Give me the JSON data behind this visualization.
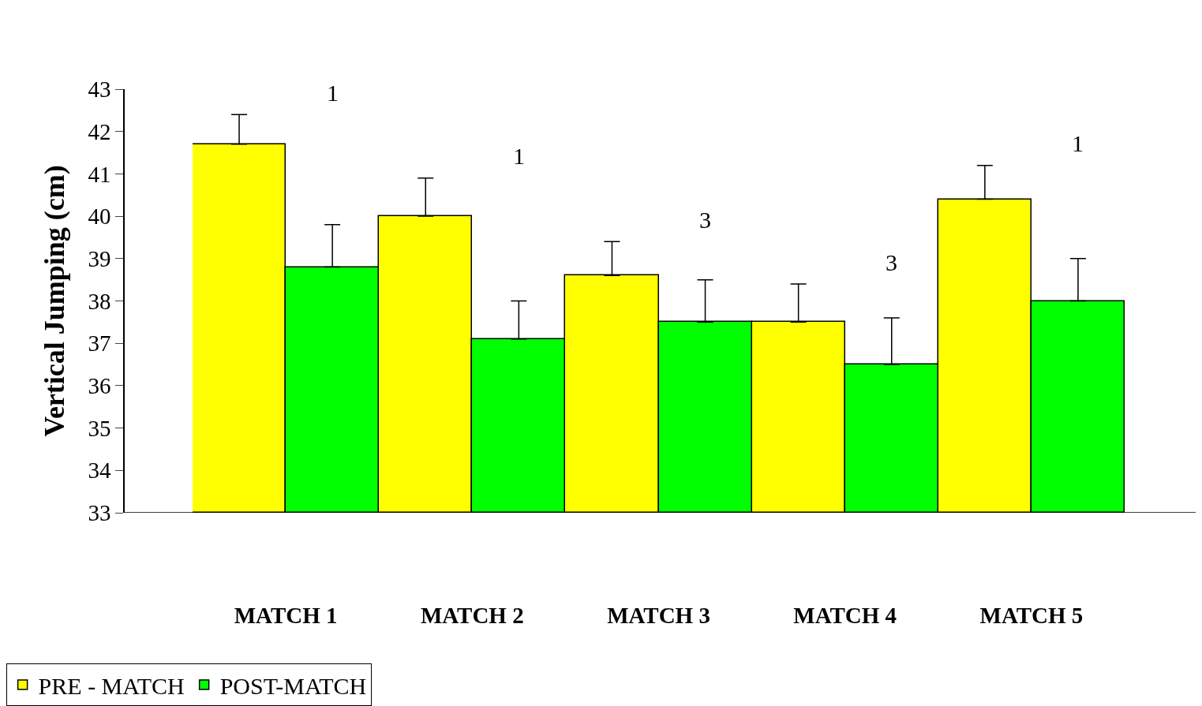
{
  "chart_data": {
    "type": "bar",
    "ylabel": "Vertical Jumping (cm)",
    "categories": [
      "MATCH 1",
      "MATCH 2",
      "MATCH 3",
      "MATCH 4",
      "MATCH 5"
    ],
    "series": [
      {
        "name": "PRE - MATCH",
        "color": "#ffff00",
        "values": [
          41.7,
          40.0,
          38.6,
          37.5,
          40.4
        ],
        "errors": [
          [
            41.7,
            42.4
          ],
          [
            40.0,
            40.9
          ],
          [
            38.6,
            39.4
          ],
          [
            37.5,
            38.4
          ],
          [
            40.4,
            41.2
          ]
        ]
      },
      {
        "name": "POST-MATCH",
        "color": "#00ff00",
        "values": [
          38.8,
          37.1,
          37.5,
          36.5,
          38.0
        ],
        "errors": [
          [
            38.8,
            39.8
          ],
          [
            37.1,
            38.0
          ],
          [
            37.5,
            38.5
          ],
          [
            36.5,
            37.6
          ],
          [
            38.0,
            39.0
          ]
        ]
      }
    ],
    "ylim": [
      33,
      43
    ],
    "yticks": [
      33,
      34,
      35,
      36,
      37,
      38,
      39,
      40,
      41,
      42,
      43
    ],
    "annotations": [
      "1",
      "1",
      "3",
      "3",
      "1"
    ],
    "legend": "bottom left"
  }
}
